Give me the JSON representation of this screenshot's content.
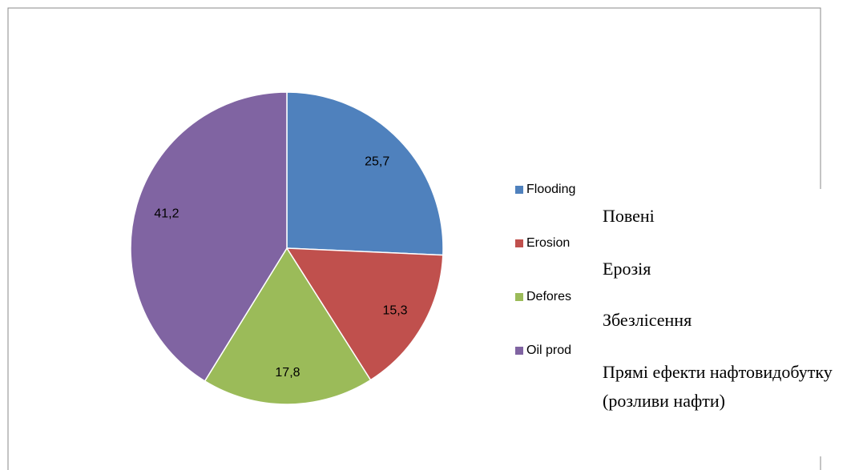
{
  "chart_data": {
    "type": "pie",
    "categories": [
      "Flooding",
      "Erosion",
      "Defores",
      "Oil prod"
    ],
    "values": [
      25.7,
      15.3,
      17.8,
      41.2
    ],
    "value_labels": [
      "25,7",
      "15,3",
      "17,8",
      "41,2"
    ],
    "colors": [
      "#4f81bd",
      "#c0504d",
      "#9bbb59",
      "#8064a2"
    ],
    "legend": "right"
  },
  "annotations": [
    "Повені",
    "Ерозія",
    "Збезлісення",
    "Прямі ефекти нафтовидобутку (розливи нафти)"
  ]
}
